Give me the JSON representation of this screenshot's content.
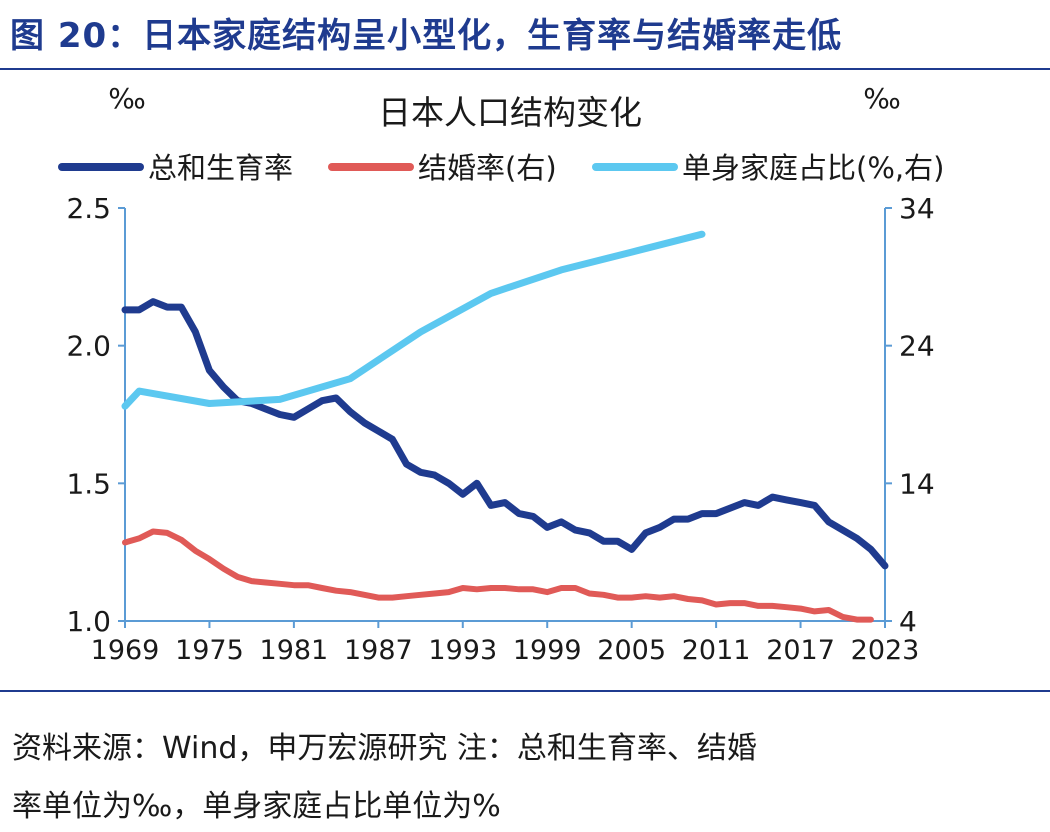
{
  "header": {
    "title": "图 20：日本家庭结构呈小型化，生育率与结婚率走低"
  },
  "colors": {
    "brand": "#1f3b8f",
    "axis": "#5b9bd5",
    "tfr": "#1f3b8f",
    "marriage": "#e05a57",
    "single": "#5cc8f0"
  },
  "chart_data": {
    "type": "line",
    "title": "日本人口结构变化",
    "left_unit": "‰",
    "right_unit": "‰",
    "xlim": [
      1969,
      2023
    ],
    "x_ticks": [
      "1969",
      "1975",
      "1981",
      "1987",
      "1993",
      "1999",
      "2005",
      "2011",
      "2017",
      "2023"
    ],
    "y_left": {
      "lim": [
        1.0,
        2.5
      ],
      "ticks": [
        "1.0",
        "1.5",
        "2.0",
        "2.5"
      ]
    },
    "y_right": {
      "lim": [
        4,
        34
      ],
      "ticks": [
        "4",
        "14",
        "24",
        "34"
      ]
    },
    "legend_position": "top",
    "series": [
      {
        "name": "总和生育率",
        "axis": "left",
        "x": [
          1969,
          1970,
          1971,
          1972,
          1973,
          1974,
          1975,
          1976,
          1977,
          1978,
          1979,
          1980,
          1981,
          1982,
          1983,
          1984,
          1985,
          1986,
          1987,
          1988,
          1989,
          1990,
          1991,
          1992,
          1993,
          1994,
          1995,
          1996,
          1997,
          1998,
          1999,
          2000,
          2001,
          2002,
          2003,
          2004,
          2005,
          2006,
          2007,
          2008,
          2009,
          2010,
          2011,
          2012,
          2013,
          2014,
          2015,
          2016,
          2017,
          2018,
          2019,
          2020,
          2021,
          2022,
          2023
        ],
        "values": [
          2.13,
          2.13,
          2.16,
          2.14,
          2.14,
          2.05,
          1.91,
          1.85,
          1.8,
          1.79,
          1.77,
          1.75,
          1.74,
          1.77,
          1.8,
          1.81,
          1.76,
          1.72,
          1.69,
          1.66,
          1.57,
          1.54,
          1.53,
          1.5,
          1.46,
          1.5,
          1.42,
          1.43,
          1.39,
          1.38,
          1.34,
          1.36,
          1.33,
          1.32,
          1.29,
          1.29,
          1.26,
          1.32,
          1.34,
          1.37,
          1.37,
          1.39,
          1.39,
          1.41,
          1.43,
          1.42,
          1.45,
          1.44,
          1.43,
          1.42,
          1.36,
          1.33,
          1.3,
          1.26,
          1.2
        ]
      },
      {
        "name": "结婚率(右)",
        "axis": "right",
        "x": [
          1969,
          1970,
          1971,
          1972,
          1973,
          1974,
          1975,
          1976,
          1977,
          1978,
          1979,
          1980,
          1981,
          1982,
          1983,
          1984,
          1985,
          1986,
          1987,
          1988,
          1989,
          1990,
          1991,
          1992,
          1993,
          1994,
          1995,
          1996,
          1997,
          1998,
          1999,
          2000,
          2001,
          2002,
          2003,
          2004,
          2005,
          2006,
          2007,
          2008,
          2009,
          2010,
          2011,
          2012,
          2013,
          2014,
          2015,
          2016,
          2017,
          2018,
          2019,
          2020,
          2021,
          2022
        ],
        "values": [
          9.7,
          10.0,
          10.5,
          10.4,
          9.9,
          9.1,
          8.5,
          7.8,
          7.2,
          6.9,
          6.8,
          6.7,
          6.6,
          6.6,
          6.4,
          6.2,
          6.1,
          5.9,
          5.7,
          5.7,
          5.8,
          5.9,
          6.0,
          6.1,
          6.4,
          6.3,
          6.4,
          6.4,
          6.3,
          6.3,
          6.1,
          6.4,
          6.4,
          6.0,
          5.9,
          5.7,
          5.7,
          5.8,
          5.7,
          5.8,
          5.6,
          5.5,
          5.2,
          5.3,
          5.3,
          5.1,
          5.1,
          5.0,
          4.9,
          4.7,
          4.8,
          4.3,
          4.1,
          4.1
        ]
      },
      {
        "name": "单身家庭占比(%,右)",
        "axis": "right",
        "x": [
          1969,
          1970,
          1975,
          1980,
          1985,
          1990,
          1995,
          2000,
          2005,
          2010
        ],
        "values": [
          19.6,
          20.7,
          19.8,
          20.1,
          21.6,
          25.0,
          27.8,
          29.5,
          30.8,
          32.1
        ]
      }
    ]
  },
  "footer": {
    "line1": "资料来源：Wind，申万宏源研究  注：总和生育率、结婚",
    "line2": "率单位为‰，单身家庭占比单位为%"
  }
}
